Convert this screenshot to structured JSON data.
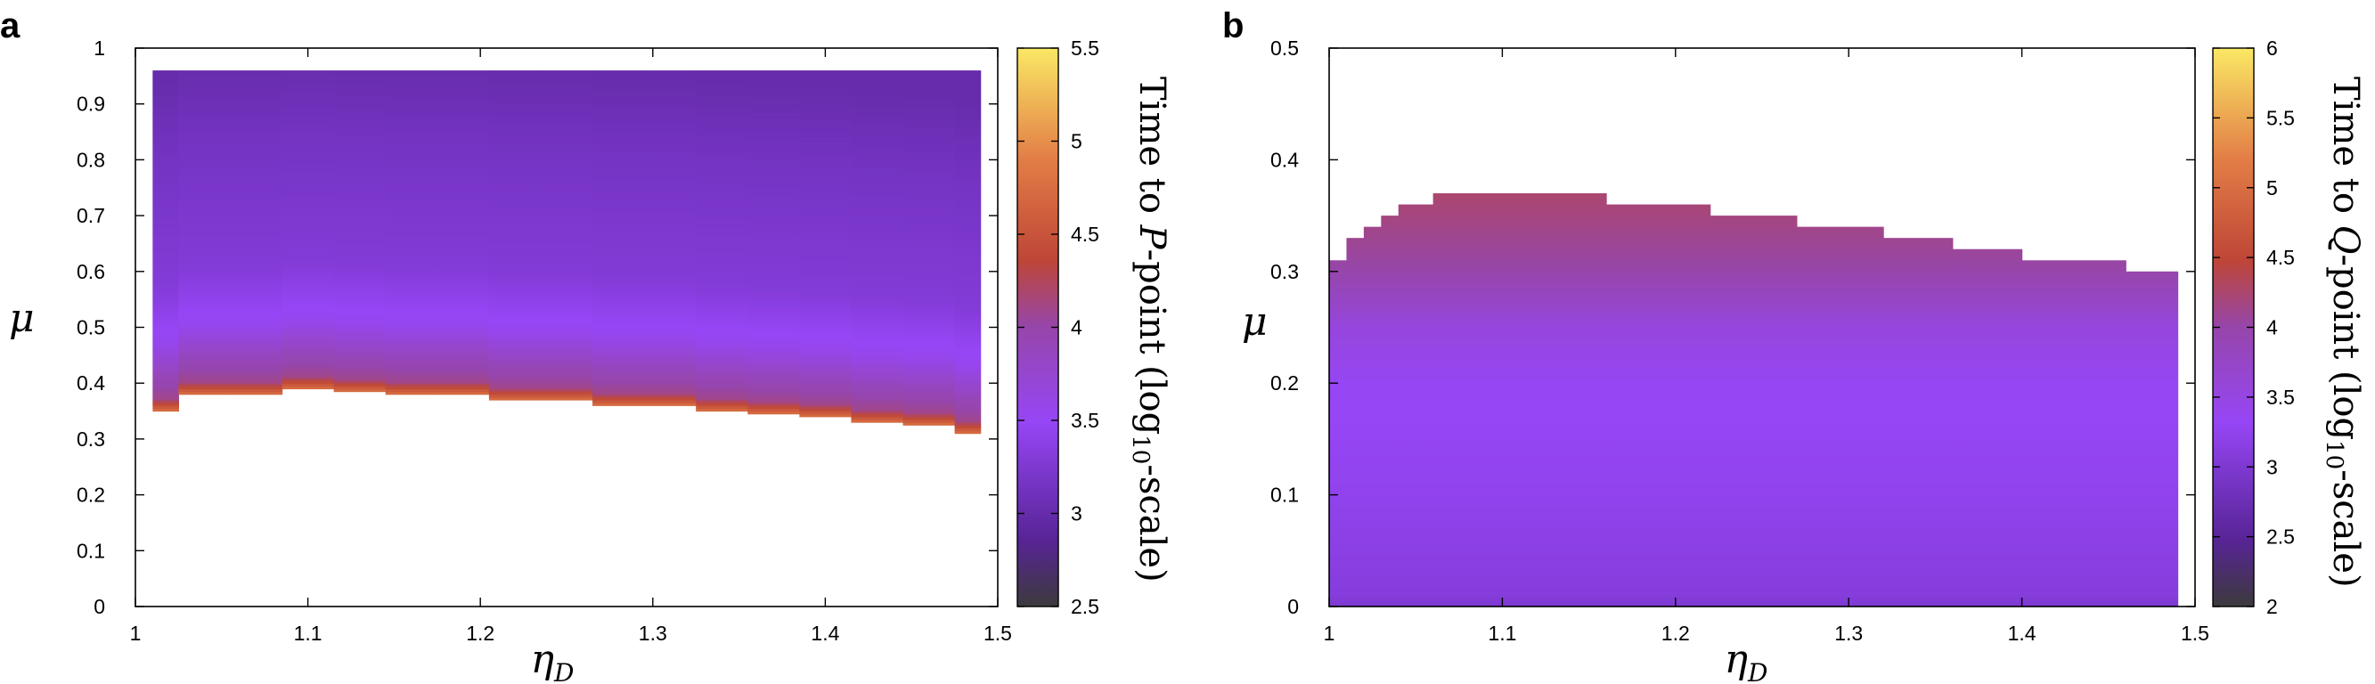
{
  "chart_data": [
    {
      "type": "heatmap",
      "panel": "a",
      "xlabel": "η",
      "xlabel_sub": "D",
      "ylabel": "μ",
      "xlim": [
        1,
        1.5
      ],
      "ylim": [
        0,
        1
      ],
      "xticks": [
        "1",
        "1.1",
        "1.2",
        "1.3",
        "1.4",
        "1.5"
      ],
      "yticks": [
        "0",
        "0.1",
        "0.2",
        "0.3",
        "0.4",
        "0.5",
        "0.6",
        "0.7",
        "0.8",
        "0.9",
        "1"
      ],
      "colorbar": {
        "label_parts": [
          "Time to ",
          "P",
          "-point  (log",
          "10",
          "-scale)"
        ],
        "range": [
          2.5,
          5.5
        ],
        "ticks": [
          "2.5",
          "3",
          "3.5",
          "4",
          "4.5",
          "5",
          "5.5"
        ]
      },
      "region": {
        "x": [
          1.01,
          1.04,
          1.07,
          1.1,
          1.13,
          1.16,
          1.19,
          1.22,
          1.25,
          1.28,
          1.31,
          1.34,
          1.37,
          1.4,
          1.43,
          1.46,
          1.49
        ],
        "mu_lower": [
          0.35,
          0.38,
          0.38,
          0.39,
          0.385,
          0.38,
          0.38,
          0.37,
          0.37,
          0.36,
          0.36,
          0.35,
          0.345,
          0.34,
          0.33,
          0.325,
          0.31
        ],
        "mu_upper": [
          0.96,
          0.96,
          0.96,
          0.96,
          0.96,
          0.96,
          0.96,
          0.96,
          0.96,
          0.96,
          0.96,
          0.96,
          0.96,
          0.96,
          0.96,
          0.96,
          0.96
        ],
        "value_profile": [
          {
            "offset_from_lower": 0.0,
            "value": 4.7
          },
          {
            "offset_from_lower": 0.02,
            "value": 4.1
          },
          {
            "offset_from_lower": 0.06,
            "value": 3.9
          },
          {
            "offset_from_lower": 0.12,
            "value": 3.55
          },
          {
            "offset_from_lower": 0.22,
            "value": 3.3
          },
          {
            "offset_from_lower": 0.45,
            "value": 3.15
          },
          {
            "offset_from_lower": 0.6,
            "value": 3.0
          }
        ]
      }
    },
    {
      "type": "heatmap",
      "panel": "b",
      "xlabel": "η",
      "xlabel_sub": "D",
      "ylabel": "μ",
      "xlim": [
        1,
        1.5
      ],
      "ylim": [
        0,
        0.5
      ],
      "xticks": [
        "1",
        "1.1",
        "1.2",
        "1.3",
        "1.4",
        "1.5"
      ],
      "yticks": [
        "0",
        "0.1",
        "0.2",
        "0.3",
        "0.4",
        "0.5"
      ],
      "colorbar": {
        "label_parts": [
          "Time to ",
          "Q",
          "-point  (log",
          "10",
          "-scale)"
        ],
        "range": [
          2,
          6
        ],
        "ticks": [
          "2",
          "2.5",
          "3",
          "3.5",
          "4",
          "4.5",
          "5",
          "5.5",
          "6"
        ]
      },
      "region": {
        "x_edges": [
          1.0,
          1.01,
          1.02,
          1.03,
          1.04,
          1.06,
          1.16,
          1.22,
          1.27,
          1.32,
          1.36,
          1.4,
          1.46,
          1.49
        ],
        "mu_upper": [
          0.31,
          0.33,
          0.34,
          0.35,
          0.36,
          0.37,
          0.36,
          0.35,
          0.34,
          0.33,
          0.32,
          0.31,
          0.3
        ],
        "mu_lower": 0,
        "value_profile": [
          {
            "mu": 0.0,
            "value": 3.0
          },
          {
            "mu": 0.01,
            "value": 3.1
          },
          {
            "mu": 0.1,
            "value": 3.25
          },
          {
            "mu": 0.2,
            "value": 3.35
          },
          {
            "mu": 0.25,
            "value": 3.55
          },
          {
            "mu": 0.3,
            "value": 4.0
          },
          {
            "mu": 0.37,
            "value": 4.25
          }
        ]
      }
    }
  ]
}
